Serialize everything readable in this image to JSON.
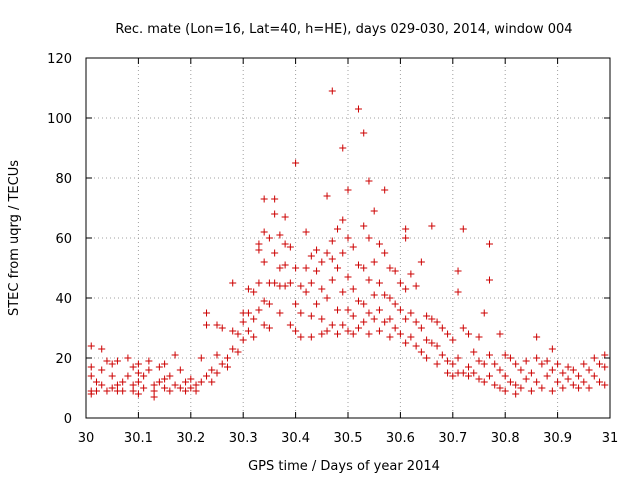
{
  "chart_data": {
    "type": "scatter",
    "title": "Rec. mate (Lon=16, Lat=40, h=HE), days 029-030, 2014, window 004",
    "xlabel": "GPS time / Days of year 2014",
    "ylabel": "STEC from uqrg / TECUs",
    "xlim": [
      30,
      31
    ],
    "ylim": [
      0,
      120
    ],
    "xticks": [
      "30",
      "30.1",
      "30.2",
      "30.3",
      "30.4",
      "30.5",
      "30.6",
      "30.7",
      "30.8",
      "30.9",
      "31"
    ],
    "yticks": [
      "0",
      "20",
      "40",
      "60",
      "80",
      "100",
      "120"
    ],
    "grid": true,
    "marker": "plus",
    "color": "#cc0000",
    "points": [
      [
        30.01,
        24
      ],
      [
        30.01,
        17
      ],
      [
        30.01,
        14
      ],
      [
        30.01,
        9
      ],
      [
        30.01,
        8
      ],
      [
        30.02,
        12
      ],
      [
        30.02,
        9
      ],
      [
        30.03,
        16
      ],
      [
        30.03,
        23
      ],
      [
        30.03,
        11
      ],
      [
        30.04,
        9
      ],
      [
        30.04,
        19
      ],
      [
        30.05,
        18
      ],
      [
        30.05,
        14
      ],
      [
        30.05,
        10
      ],
      [
        30.06,
        19
      ],
      [
        30.06,
        9
      ],
      [
        30.06,
        11
      ],
      [
        30.07,
        12
      ],
      [
        30.07,
        9
      ],
      [
        30.08,
        20
      ],
      [
        30.08,
        14
      ],
      [
        30.09,
        17
      ],
      [
        30.09,
        11
      ],
      [
        30.09,
        9
      ],
      [
        30.1,
        18
      ],
      [
        30.1,
        15
      ],
      [
        30.1,
        12
      ],
      [
        30.1,
        8
      ],
      [
        30.11,
        14
      ],
      [
        30.11,
        10
      ],
      [
        30.12,
        19
      ],
      [
        30.12,
        16
      ],
      [
        30.13,
        11
      ],
      [
        30.13,
        9
      ],
      [
        30.13,
        7
      ],
      [
        30.14,
        17
      ],
      [
        30.14,
        12
      ],
      [
        30.15,
        18
      ],
      [
        30.15,
        13
      ],
      [
        30.15,
        10
      ],
      [
        30.16,
        14
      ],
      [
        30.16,
        9
      ],
      [
        30.17,
        21
      ],
      [
        30.17,
        11
      ],
      [
        30.18,
        16
      ],
      [
        30.18,
        10
      ],
      [
        30.19,
        12
      ],
      [
        30.19,
        9
      ],
      [
        30.2,
        13
      ],
      [
        30.2,
        10
      ],
      [
        30.21,
        11
      ],
      [
        30.21,
        9
      ],
      [
        30.22,
        20
      ],
      [
        30.22,
        12
      ],
      [
        30.23,
        35
      ],
      [
        30.23,
        31
      ],
      [
        30.23,
        14
      ],
      [
        30.24,
        12
      ],
      [
        30.24,
        16
      ],
      [
        30.25,
        31
      ],
      [
        30.25,
        21
      ],
      [
        30.25,
        15
      ],
      [
        30.26,
        30
      ],
      [
        30.26,
        18
      ],
      [
        30.27,
        17
      ],
      [
        30.27,
        20
      ],
      [
        30.28,
        45
      ],
      [
        30.28,
        29
      ],
      [
        30.28,
        23
      ],
      [
        30.29,
        28
      ],
      [
        30.29,
        22
      ],
      [
        30.3,
        35
      ],
      [
        30.3,
        32
      ],
      [
        30.3,
        26
      ],
      [
        30.31,
        43
      ],
      [
        30.31,
        35
      ],
      [
        30.31,
        29
      ],
      [
        30.32,
        42
      ],
      [
        30.32,
        33
      ],
      [
        30.32,
        27
      ],
      [
        30.33,
        58
      ],
      [
        30.33,
        56
      ],
      [
        30.33,
        45
      ],
      [
        30.33,
        36
      ],
      [
        30.34,
        73
      ],
      [
        30.34,
        62
      ],
      [
        30.34,
        52
      ],
      [
        30.34,
        39
      ],
      [
        30.34,
        31
      ],
      [
        30.35,
        60
      ],
      [
        30.35,
        45
      ],
      [
        30.35,
        38
      ],
      [
        30.35,
        30
      ],
      [
        30.36,
        73
      ],
      [
        30.36,
        68
      ],
      [
        30.36,
        55
      ],
      [
        30.36,
        45
      ],
      [
        30.37,
        61
      ],
      [
        30.37,
        50
      ],
      [
        30.37,
        44
      ],
      [
        30.37,
        35
      ],
      [
        30.38,
        67
      ],
      [
        30.38,
        58
      ],
      [
        30.38,
        51
      ],
      [
        30.38,
        44
      ],
      [
        30.39,
        57
      ],
      [
        30.39,
        45
      ],
      [
        30.39,
        31
      ],
      [
        30.4,
        85
      ],
      [
        30.4,
        50
      ],
      [
        30.4,
        38
      ],
      [
        30.4,
        29
      ],
      [
        30.41,
        44
      ],
      [
        30.41,
        35
      ],
      [
        30.41,
        27
      ],
      [
        30.42,
        62
      ],
      [
        30.42,
        50
      ],
      [
        30.42,
        42
      ],
      [
        30.43,
        54
      ],
      [
        30.43,
        45
      ],
      [
        30.43,
        34
      ],
      [
        30.43,
        27
      ],
      [
        30.44,
        56
      ],
      [
        30.44,
        49
      ],
      [
        30.44,
        38
      ],
      [
        30.45,
        52
      ],
      [
        30.45,
        43
      ],
      [
        30.45,
        33
      ],
      [
        30.45,
        28
      ],
      [
        30.46,
        74
      ],
      [
        30.46,
        55
      ],
      [
        30.46,
        40
      ],
      [
        30.46,
        29
      ],
      [
        30.47,
        59
      ],
      [
        30.47,
        53
      ],
      [
        30.47,
        46
      ],
      [
        30.47,
        31
      ],
      [
        30.47,
        109
      ],
      [
        30.48,
        63
      ],
      [
        30.48,
        50
      ],
      [
        30.48,
        36
      ],
      [
        30.48,
        28
      ],
      [
        30.49,
        90
      ],
      [
        30.49,
        66
      ],
      [
        30.49,
        55
      ],
      [
        30.49,
        42
      ],
      [
        30.49,
        31
      ],
      [
        30.5,
        76
      ],
      [
        30.5,
        60
      ],
      [
        30.5,
        47
      ],
      [
        30.5,
        36
      ],
      [
        30.5,
        29
      ],
      [
        30.51,
        57
      ],
      [
        30.51,
        43
      ],
      [
        30.51,
        34
      ],
      [
        30.51,
        28
      ],
      [
        30.52,
        103
      ],
      [
        30.52,
        51
      ],
      [
        30.52,
        39
      ],
      [
        30.52,
        30
      ],
      [
        30.53,
        95
      ],
      [
        30.53,
        64
      ],
      [
        30.53,
        50
      ],
      [
        30.53,
        38
      ],
      [
        30.53,
        32
      ],
      [
        30.54,
        79
      ],
      [
        30.54,
        60
      ],
      [
        30.54,
        46
      ],
      [
        30.54,
        35
      ],
      [
        30.54,
        28
      ],
      [
        30.55,
        69
      ],
      [
        30.55,
        52
      ],
      [
        30.55,
        41
      ],
      [
        30.55,
        33
      ],
      [
        30.56,
        58
      ],
      [
        30.56,
        45
      ],
      [
        30.56,
        36
      ],
      [
        30.56,
        29
      ],
      [
        30.57,
        76
      ],
      [
        30.57,
        55
      ],
      [
        30.57,
        41
      ],
      [
        30.57,
        32
      ],
      [
        30.58,
        50
      ],
      [
        30.58,
        40
      ],
      [
        30.58,
        33
      ],
      [
        30.58,
        27
      ],
      [
        30.59,
        49
      ],
      [
        30.59,
        38
      ],
      [
        30.59,
        30
      ],
      [
        30.6,
        45
      ],
      [
        30.6,
        36
      ],
      [
        30.6,
        28
      ],
      [
        30.61,
        63
      ],
      [
        30.61,
        60
      ],
      [
        30.61,
        43
      ],
      [
        30.61,
        33
      ],
      [
        30.61,
        25
      ],
      [
        30.62,
        48
      ],
      [
        30.62,
        35
      ],
      [
        30.62,
        27
      ],
      [
        30.63,
        44
      ],
      [
        30.63,
        32
      ],
      [
        30.63,
        24
      ],
      [
        30.64,
        52
      ],
      [
        30.64,
        30
      ],
      [
        30.64,
        22
      ],
      [
        30.65,
        34
      ],
      [
        30.65,
        26
      ],
      [
        30.65,
        20
      ],
      [
        30.66,
        64
      ],
      [
        30.66,
        33
      ],
      [
        30.66,
        25
      ],
      [
        30.67,
        32
      ],
      [
        30.67,
        24
      ],
      [
        30.67,
        18
      ],
      [
        30.68,
        30
      ],
      [
        30.68,
        21
      ],
      [
        30.69,
        28
      ],
      [
        30.69,
        19
      ],
      [
        30.69,
        15
      ],
      [
        30.7,
        26
      ],
      [
        30.7,
        18
      ],
      [
        30.7,
        14
      ],
      [
        30.71,
        49
      ],
      [
        30.71,
        42
      ],
      [
        30.71,
        20
      ],
      [
        30.71,
        15
      ],
      [
        30.72,
        63
      ],
      [
        30.72,
        30
      ],
      [
        30.72,
        15
      ],
      [
        30.73,
        28
      ],
      [
        30.73,
        17
      ],
      [
        30.73,
        14
      ],
      [
        30.74,
        22
      ],
      [
        30.74,
        15
      ],
      [
        30.75,
        27
      ],
      [
        30.75,
        19
      ],
      [
        30.75,
        13
      ],
      [
        30.76,
        35
      ],
      [
        30.76,
        18
      ],
      [
        30.76,
        12
      ],
      [
        30.77,
        58
      ],
      [
        30.77,
        46
      ],
      [
        30.77,
        21
      ],
      [
        30.77,
        14
      ],
      [
        30.78,
        18
      ],
      [
        30.78,
        11
      ],
      [
        30.79,
        28
      ],
      [
        30.79,
        16
      ],
      [
        30.79,
        10
      ],
      [
        30.8,
        21
      ],
      [
        30.8,
        14
      ],
      [
        30.8,
        9
      ],
      [
        30.81,
        20
      ],
      [
        30.81,
        12
      ],
      [
        30.82,
        18
      ],
      [
        30.82,
        11
      ],
      [
        30.82,
        8
      ],
      [
        30.83,
        16
      ],
      [
        30.83,
        10
      ],
      [
        30.84,
        19
      ],
      [
        30.84,
        13
      ],
      [
        30.85,
        15
      ],
      [
        30.85,
        9
      ],
      [
        30.86,
        27
      ],
      [
        30.86,
        20
      ],
      [
        30.86,
        12
      ],
      [
        30.87,
        18
      ],
      [
        30.87,
        10
      ],
      [
        30.88,
        19
      ],
      [
        30.88,
        14
      ],
      [
        30.89,
        23
      ],
      [
        30.89,
        16
      ],
      [
        30.89,
        9
      ],
      [
        30.9,
        18
      ],
      [
        30.9,
        12
      ],
      [
        30.91,
        15
      ],
      [
        30.91,
        10
      ],
      [
        30.92,
        17
      ],
      [
        30.92,
        13
      ],
      [
        30.93,
        16
      ],
      [
        30.93,
        11
      ],
      [
        30.94,
        14
      ],
      [
        30.94,
        10
      ],
      [
        30.95,
        18
      ],
      [
        30.95,
        12
      ],
      [
        30.96,
        16
      ],
      [
        30.96,
        10
      ],
      [
        30.97,
        20
      ],
      [
        30.97,
        14
      ],
      [
        30.98,
        18
      ],
      [
        30.98,
        12
      ],
      [
        30.99,
        21
      ],
      [
        30.99,
        17
      ],
      [
        30.99,
        11
      ]
    ]
  }
}
